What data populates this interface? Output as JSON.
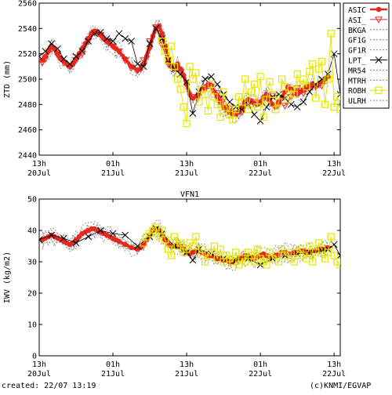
{
  "footer": {
    "created_label": "created: 22/07 13:19",
    "credit": "(c)KNMI/EGVAP"
  },
  "colors": {
    "ASIC": "#e8281c",
    "ASI_": "#e8281c",
    "ROBH": "#e6e600",
    "LPT_": "#000000",
    "dashed": "#7f7f7f"
  },
  "chart_data": [
    {
      "type": "line",
      "title": "",
      "xlabel": "",
      "ylabel": "ZTD (mm)",
      "ylim": [
        2440,
        2560
      ],
      "yticks": [
        2440,
        2460,
        2480,
        2500,
        2520,
        2540,
        2560
      ],
      "xlim": [
        0,
        49
      ],
      "x_unit": "hours since 20Jul 13h",
      "xticks": [
        {
          "x": 0,
          "line1": "13h",
          "line2": "20Jul"
        },
        {
          "x": 12,
          "line1": "01h",
          "line2": "21Jul"
        },
        {
          "x": 24,
          "line1": "13h",
          "line2": "21Jul"
        },
        {
          "x": 36,
          "line1": "01h",
          "line2": "22Jul"
        },
        {
          "x": 48,
          "line1": "13h",
          "line2": "22Jul"
        }
      ],
      "legend": [
        "ASIC",
        "ASI_",
        "BKGA",
        "GF1G",
        "GF1R",
        "LPT_",
        "MR54",
        "MTRH",
        "ROBH",
        "ULRH"
      ],
      "legend_position": "outside-right",
      "series": [
        {
          "name": "ASIC",
          "style": "red-filled-circle",
          "x": [
            0.5,
            1,
            1.5,
            2,
            2.5,
            3,
            3.5,
            4,
            4.5,
            5,
            5.5,
            6,
            6.5,
            7,
            7.5,
            8,
            8.5,
            9,
            9.5,
            10,
            10.5,
            11,
            11.5,
            12,
            12.5,
            13,
            14,
            15,
            16,
            16.5,
            17,
            17.5,
            18,
            18.5,
            19,
            19.5,
            20,
            20.5,
            21,
            21.5,
            22,
            22.5,
            23,
            23.5,
            24,
            24.5,
            25,
            25.5,
            26,
            26.5,
            27,
            27.5,
            28,
            28.5,
            29,
            29.5,
            30,
            30.5,
            31,
            31.5,
            32,
            32.5,
            33,
            33.5,
            34,
            34.5,
            35,
            35.5,
            36,
            36.5,
            37,
            37.5,
            38,
            38.5,
            39,
            39.5,
            40,
            40.5,
            41,
            41.5,
            42,
            42.5,
            43,
            43.5,
            44,
            44.5,
            45,
            45.5,
            46,
            46.5,
            47
          ],
          "y": [
            2515,
            2518,
            2522,
            2526,
            2524,
            2520,
            2516,
            2514,
            2512,
            2510,
            2512,
            2516,
            2520,
            2524,
            2528,
            2532,
            2536,
            2538,
            2537,
            2535,
            2532,
            2530,
            2528,
            2526,
            2524,
            2522,
            2516,
            2510,
            2507,
            2508,
            2512,
            2518,
            2525,
            2534,
            2540,
            2542,
            2536,
            2526,
            2516,
            2510,
            2508,
            2512,
            2508,
            2503,
            2496,
            2488,
            2485,
            2486,
            2488,
            2492,
            2494,
            2496,
            2495,
            2490,
            2486,
            2482,
            2478,
            2476,
            2474,
            2472,
            2472,
            2474,
            2478,
            2482,
            2484,
            2483,
            2481,
            2480,
            2482,
            2486,
            2488,
            2484,
            2480,
            2478,
            2482,
            2486,
            2490,
            2494,
            2492,
            2490,
            2488,
            2490,
            2492,
            2494,
            2495,
            2496,
            2494,
            2496,
            2498,
            2500,
            2502
          ]
        },
        {
          "name": "ASI_",
          "style": "red-open-triangle",
          "x": [
            0.5,
            1,
            2,
            3,
            4,
            5,
            6,
            7,
            8,
            9,
            10,
            11,
            12,
            13,
            14,
            15,
            16,
            17,
            18,
            19,
            20,
            21,
            22,
            23,
            24,
            25,
            26,
            27,
            28,
            29,
            30,
            31,
            32,
            33,
            34,
            35,
            36,
            37,
            38,
            39,
            40,
            41,
            42,
            43,
            44,
            45,
            46
          ],
          "y": [
            2513,
            2516,
            2524,
            2519,
            2513,
            2510,
            2515,
            2520,
            2530,
            2537,
            2535,
            2530,
            2526,
            2522,
            2515,
            2509,
            2507,
            2515,
            2530,
            2541,
            2527,
            2512,
            2510,
            2506,
            2497,
            2486,
            2487,
            2492,
            2494,
            2489,
            2484,
            2477,
            2473,
            2474,
            2480,
            2482,
            2481,
            2485,
            2487,
            2480,
            2479,
            2486,
            2493,
            2489,
            2493,
            2494,
            2495
          ]
        },
        {
          "name": "LPT_",
          "style": "black-x",
          "x": [
            0,
            1,
            2,
            3,
            4,
            5,
            6,
            7,
            8,
            9,
            10,
            11,
            12,
            13,
            14,
            15,
            16,
            17,
            18,
            19,
            20,
            21,
            22,
            23,
            24,
            25,
            26,
            27,
            28,
            29,
            30,
            31,
            32,
            33,
            34,
            35,
            36,
            37,
            38,
            39,
            40,
            41,
            42,
            43,
            44,
            45,
            46,
            47,
            48,
            49
          ],
          "y": [
            2518,
            2522,
            2528,
            2524,
            2516,
            2512,
            2518,
            2522,
            2530,
            2536,
            2537,
            2532,
            2530,
            2536,
            2532,
            2530,
            2512,
            2510,
            2528,
            2540,
            2532,
            2515,
            2508,
            2504,
            2498,
            2473,
            2490,
            2500,
            2502,
            2496,
            2488,
            2482,
            2478,
            2476,
            2480,
            2472,
            2467,
            2478,
            2486,
            2488,
            2485,
            2480,
            2478,
            2482,
            2490,
            2496,
            2500,
            2504,
            2520,
            2488
          ]
        },
        {
          "name": "ROBH",
          "style": "yellow-open-square",
          "x": [
            20,
            20.5,
            21,
            21.5,
            22,
            22.5,
            23,
            23.5,
            24,
            24.5,
            25,
            25.5,
            26,
            26.5,
            27,
            27.5,
            28,
            28.5,
            29,
            29.5,
            30,
            30.5,
            31,
            31.5,
            32,
            32.5,
            33,
            33.5,
            34,
            34.5,
            35,
            35.5,
            36,
            36.5,
            37,
            37.5,
            38,
            38.5,
            39,
            39.5,
            40,
            40.5,
            41,
            41.5,
            42,
            42.5,
            43,
            43.5,
            44,
            44.5,
            45,
            45.5,
            46,
            46.5,
            47,
            47.5,
            48,
            48.5,
            49
          ],
          "y": [
            2530,
            2522,
            2515,
            2526,
            2510,
            2500,
            2492,
            2478,
            2465,
            2510,
            2500,
            2505,
            2482,
            2492,
            2488,
            2475,
            2496,
            2486,
            2480,
            2470,
            2490,
            2478,
            2472,
            2468,
            2476,
            2486,
            2482,
            2500,
            2476,
            2490,
            2496,
            2478,
            2502,
            2470,
            2484,
            2498,
            2488,
            2476,
            2482,
            2500,
            2494,
            2484,
            2492,
            2488,
            2504,
            2496,
            2500,
            2494,
            2506,
            2512,
            2485,
            2508,
            2514,
            2480,
            2500,
            2536,
            2478,
            2486,
            2476
          ]
        }
      ],
      "dashed_series": [
        "BKGA",
        "GF1G",
        "GF1R",
        "MR54",
        "MTRH",
        "ULRH"
      ]
    },
    {
      "type": "line",
      "title": "VFN1",
      "xlabel": "",
      "ylabel": "IWV (kg/m2)",
      "ylim": [
        0,
        50
      ],
      "yticks": [
        0,
        10,
        20,
        30,
        40,
        50
      ],
      "xlim": [
        0,
        49
      ],
      "x_unit": "hours since 20Jul 13h",
      "xticks": [
        {
          "x": 0,
          "line1": "13h",
          "line2": "20Jul"
        },
        {
          "x": 12,
          "line1": "01h",
          "line2": "21Jul"
        },
        {
          "x": 24,
          "line1": "13h",
          "line2": "21Jul"
        },
        {
          "x": 36,
          "line1": "01h",
          "line2": "22Jul"
        },
        {
          "x": 48,
          "line1": "13h",
          "line2": "22Jul"
        }
      ],
      "series": [
        {
          "name": "ASIC",
          "style": "red-filled-circle",
          "x": [
            0.5,
            1,
            1.5,
            2,
            2.5,
            3,
            3.5,
            4,
            4.5,
            5,
            5.5,
            6,
            6.5,
            7,
            7.5,
            8,
            8.5,
            9,
            9.5,
            10,
            10.5,
            11,
            11.5,
            12,
            12.5,
            13,
            14,
            15,
            16,
            16.5,
            17,
            17.5,
            18,
            18.5,
            19,
            19.5,
            20,
            20.5,
            21,
            21.5,
            22,
            22.5,
            23,
            23.5,
            24,
            24.5,
            25,
            25.5,
            26,
            26.5,
            27,
            27.5,
            28,
            28.5,
            29,
            29.5,
            30,
            30.5,
            31,
            31.5,
            32,
            32.5,
            33,
            33.5,
            34,
            34.5,
            35,
            35.5,
            36,
            36.5,
            37,
            37.5,
            38,
            38.5,
            39,
            39.5,
            40,
            40.5,
            41,
            41.5,
            42,
            42.5,
            43,
            43.5,
            44,
            44.5,
            45,
            45.5,
            46,
            46.5,
            47
          ],
          "y": [
            37,
            37.5,
            38,
            38.5,
            38,
            37.5,
            37,
            36.5,
            36,
            35.5,
            36,
            37,
            38,
            39,
            39.5,
            40,
            40.5,
            40.5,
            40,
            39.5,
            39,
            38.5,
            38,
            37.5,
            37,
            36.5,
            35.5,
            34.5,
            34,
            34.5,
            35.5,
            37,
            38.5,
            40,
            40.5,
            40,
            38.5,
            37,
            35.5,
            35,
            35,
            35.5,
            35,
            34,
            33,
            32.5,
            33,
            33.5,
            33.5,
            33,
            32.5,
            32,
            32,
            31.5,
            31,
            31,
            30.5,
            30.5,
            30,
            30,
            30.5,
            31,
            31.5,
            32,
            32,
            31.5,
            31,
            31.5,
            32,
            32.5,
            32,
            31.5,
            31.5,
            32,
            32.5,
            33,
            33,
            32.5,
            32.5,
            33,
            33,
            33.5,
            33.5,
            33,
            33,
            33.5,
            33.5,
            34,
            34,
            34,
            34.5
          ]
        },
        {
          "name": "LPT_",
          "style": "black-x",
          "x": [
            0,
            2,
            4,
            6,
            8,
            10,
            12,
            14,
            16,
            18,
            19,
            20,
            22,
            24,
            25,
            26,
            28,
            30,
            32,
            34,
            36,
            38,
            40,
            42,
            44,
            46,
            47,
            48,
            49
          ],
          "y": [
            37,
            38.5,
            37.5,
            36,
            38,
            40,
            39,
            38.5,
            35,
            38,
            40.5,
            39,
            35,
            33,
            30.5,
            34,
            32.5,
            31,
            30.5,
            31,
            29,
            31,
            32,
            32.5,
            33,
            33.5,
            34,
            35.5,
            32
          ]
        },
        {
          "name": "ROBH",
          "style": "yellow-open-square",
          "x": [
            17,
            17.5,
            18,
            18.5,
            19,
            19.5,
            20,
            20.5,
            21,
            21.5,
            22,
            22.5,
            23,
            23.5,
            24,
            24.5,
            25,
            25.5,
            26,
            26.5,
            27,
            27.5,
            28,
            28.5,
            29,
            29.5,
            30,
            30.5,
            31,
            31.5,
            32,
            32.5,
            33,
            33.5,
            34,
            34.5,
            35,
            35.5,
            36,
            36.5,
            37,
            37.5,
            38,
            38.5,
            39,
            39.5,
            40,
            40.5,
            41,
            41.5,
            42,
            42.5,
            43,
            43.5,
            44,
            44.5,
            45,
            45.5,
            46,
            46.5,
            47,
            47.5,
            48,
            48.5,
            49
          ],
          "y": [
            36,
            38,
            39,
            40,
            41,
            38,
            40,
            37,
            34,
            32,
            38,
            35,
            36,
            33,
            34,
            36,
            35,
            38,
            33,
            34,
            30,
            33,
            32,
            35,
            31,
            34,
            30,
            32,
            31,
            30,
            33,
            29,
            31,
            30,
            33,
            32,
            30,
            34,
            31,
            30,
            29,
            33,
            31,
            32,
            30,
            34,
            32,
            33,
            31,
            30,
            33,
            34,
            32,
            31,
            35,
            30,
            33,
            36,
            34,
            31,
            33,
            38,
            32,
            30,
            29
          ]
        }
      ]
    }
  ]
}
